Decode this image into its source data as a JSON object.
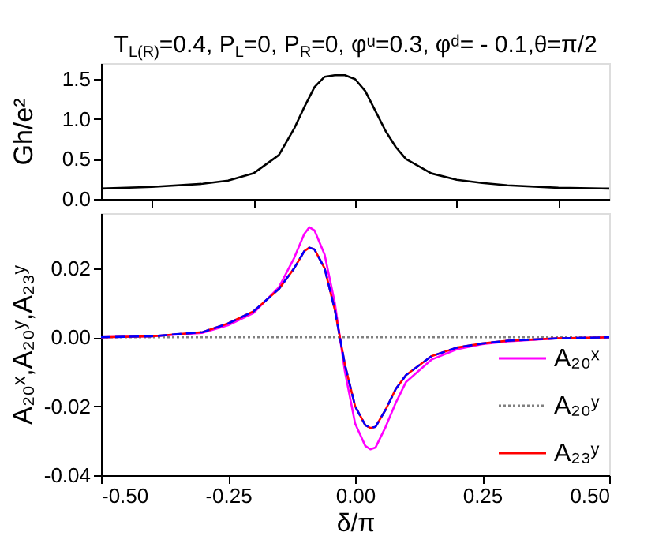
{
  "chart_data": [
    {
      "type": "line",
      "title": "T$_{L(R)}$=0.4, P$_{L}$=0, P$_{R}$=0, φᵘ=0.3, φᵈ= - 0.1,θ=π/2",
      "ylabel": "Gh/e²",
      "x": [
        -0.5,
        -0.4,
        -0.3,
        -0.25,
        -0.2,
        -0.15,
        -0.12,
        -0.1,
        -0.08,
        -0.06,
        -0.04,
        -0.02,
        0.0,
        0.02,
        0.04,
        0.06,
        0.08,
        0.1,
        0.15,
        0.2,
        0.25,
        0.3,
        0.4,
        0.5
      ],
      "series": [
        {
          "color": "#000000",
          "values": [
            0.13,
            0.15,
            0.19,
            0.23,
            0.32,
            0.55,
            0.88,
            1.15,
            1.4,
            1.53,
            1.55,
            1.55,
            1.5,
            1.35,
            1.1,
            0.85,
            0.65,
            0.5,
            0.32,
            0.24,
            0.2,
            0.17,
            0.14,
            0.13
          ]
        }
      ],
      "xlim": [
        -0.5,
        0.5
      ],
      "ylim": [
        0,
        1.7
      ],
      "yticks": [
        {
          "value": 0,
          "label": "0.0"
        },
        {
          "value": 0.5,
          "label": "0.5"
        },
        {
          "value": 1,
          "label": "1.0"
        },
        {
          "value": 1.5,
          "label": "1.5"
        }
      ],
      "tick_labels": "y",
      "grid": false,
      "legend": false
    },
    {
      "type": "line",
      "xlabel": "δ/π",
      "ylabel": "A₂₀ˣ,A₂₀ʸ,A₂₃ʸ",
      "x": [
        -0.5,
        -0.4,
        -0.3,
        -0.25,
        -0.2,
        -0.15,
        -0.12,
        -0.1,
        -0.09,
        -0.08,
        -0.06,
        -0.04,
        -0.03,
        -0.02,
        0.0,
        0.02,
        0.03,
        0.04,
        0.06,
        0.08,
        0.1,
        0.15,
        0.2,
        0.25,
        0.3,
        0.4,
        0.5
      ],
      "series": [
        {
          "name": "A₂₀ˣ",
          "color": "#ff00ff",
          "line_style": "solid",
          "values": [
            0,
            0.0003,
            0.0013,
            0.0035,
            0.007,
            0.0145,
            0.023,
            0.03,
            0.0319,
            0.031,
            0.024,
            0.01,
            0.0,
            -0.01,
            -0.025,
            -0.0315,
            -0.0325,
            -0.032,
            -0.026,
            -0.019,
            -0.013,
            -0.0065,
            -0.0035,
            -0.002,
            -0.0012,
            -0.0003,
            0
          ]
        },
        {
          "name": "A₂₀ʸ",
          "color": "#808080",
          "line_style": "dotted",
          "values": [
            0,
            0,
            0,
            0,
            0,
            0,
            0,
            0,
            0,
            0,
            0,
            0,
            0,
            0,
            0,
            0,
            0,
            0,
            0,
            0,
            0,
            0,
            0,
            0,
            0,
            0,
            0
          ]
        },
        {
          "name": "A₂₃ʸ",
          "color": "#ff0000",
          "line_style": "solid",
          "values": [
            0,
            0.0003,
            0.0015,
            0.004,
            0.0075,
            0.014,
            0.02,
            0.025,
            0.026,
            0.0255,
            0.02,
            0.008,
            0.0,
            -0.008,
            -0.02,
            -0.0255,
            -0.0263,
            -0.026,
            -0.021,
            -0.015,
            -0.011,
            -0.0055,
            -0.003,
            -0.0018,
            -0.001,
            -0.0003,
            0
          ]
        },
        {
          "color": "#0000ff",
          "line_style": "dashed",
          "values": [
            0,
            0.0003,
            0.0015,
            0.004,
            0.0075,
            0.014,
            0.02,
            0.025,
            0.026,
            0.0255,
            0.02,
            0.008,
            0.0,
            -0.008,
            -0.02,
            -0.0255,
            -0.0263,
            -0.026,
            -0.021,
            -0.015,
            -0.011,
            -0.0055,
            -0.003,
            -0.0018,
            -0.001,
            -0.0003,
            0
          ]
        }
      ],
      "xlim": [
        -0.5,
        0.5
      ],
      "ylim": [
        -0.04,
        0.036
      ],
      "xticks": [
        {
          "value": -0.5,
          "label": "-0.50"
        },
        {
          "value": -0.25,
          "label": "-0.25"
        },
        {
          "value": 0,
          "label": "0.00"
        },
        {
          "value": 0.25,
          "label": "0.25"
        },
        {
          "value": 0.5,
          "label": "0.50"
        }
      ],
      "yticks": [
        {
          "value": -0.04,
          "label": "-0.04"
        },
        {
          "value": -0.02,
          "label": "-0.02"
        },
        {
          "value": 0,
          "label": "0.00"
        },
        {
          "value": 0.02,
          "label": "0.02"
        }
      ],
      "grid": false,
      "legend": "bottom right"
    }
  ]
}
